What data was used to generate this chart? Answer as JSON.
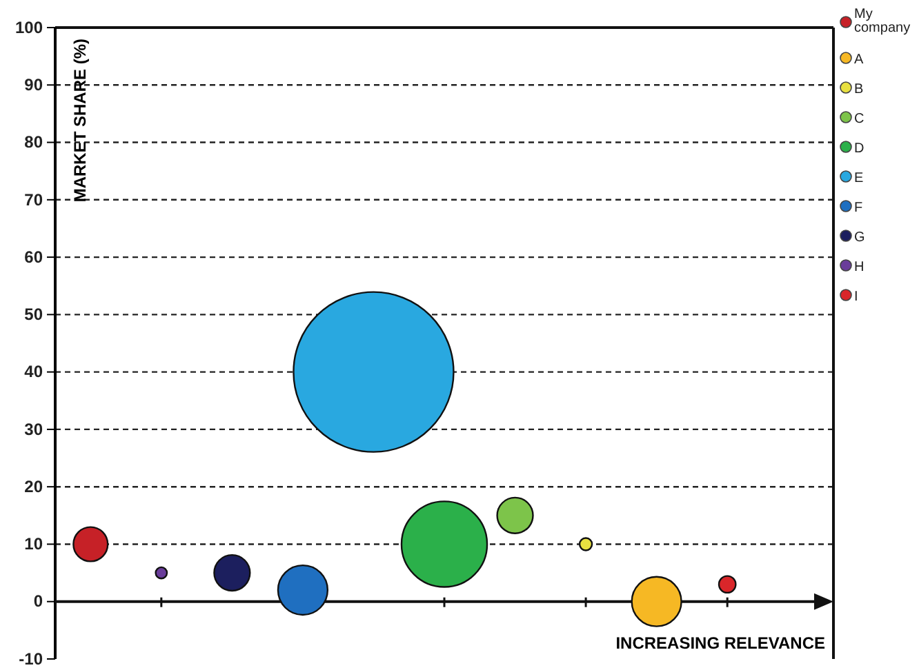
{
  "chart_data": {
    "type": "bubble",
    "xlabel": "INCREASING RELEVANCE",
    "ylabel": "MARKET SHARE (%)",
    "categories": [
      null,
      null,
      null,
      null,
      null,
      null,
      null,
      null,
      null,
      null,
      null
    ],
    "ylim": [
      -10,
      100
    ],
    "yticks": [
      -10,
      0,
      10,
      20,
      30,
      40,
      50,
      60,
      70,
      80,
      90,
      100
    ],
    "tick_labels": "y",
    "grid": "y",
    "legend": "top right",
    "series": [
      {
        "name": "My company",
        "color": "#c62127",
        "values": [
          10,
          null,
          null,
          null,
          null,
          null,
          null,
          null,
          null,
          null,
          null
        ],
        "sizes": [
          0.046,
          null,
          null,
          null,
          null,
          null,
          null,
          null,
          null,
          null,
          null
        ]
      },
      {
        "name": "A",
        "color": "#f6b824",
        "values": [
          null,
          null,
          null,
          null,
          null,
          null,
          null,
          null,
          0,
          null,
          null
        ],
        "sizes": [
          null,
          null,
          null,
          null,
          null,
          null,
          null,
          null,
          0.096,
          null,
          null
        ]
      },
      {
        "name": "B",
        "color": "#e8e040",
        "values": [
          null,
          null,
          null,
          null,
          null,
          null,
          null,
          10,
          null,
          null,
          null
        ],
        "sizes": [
          null,
          null,
          null,
          null,
          null,
          null,
          null,
          0.006,
          null,
          null,
          null
        ]
      },
      {
        "name": "C",
        "color": "#7dc44a",
        "values": [
          null,
          null,
          null,
          null,
          null,
          null,
          15,
          null,
          null,
          null,
          null
        ],
        "sizes": [
          null,
          null,
          null,
          null,
          null,
          null,
          0.05,
          null,
          null,
          null,
          null
        ]
      },
      {
        "name": "D",
        "color": "#2bb04a",
        "values": [
          null,
          null,
          null,
          null,
          null,
          10,
          null,
          null,
          null,
          null,
          null
        ],
        "sizes": [
          null,
          null,
          null,
          null,
          null,
          0.286,
          null,
          null,
          null,
          null,
          null
        ]
      },
      {
        "name": "E",
        "color": "#29a8e0",
        "values": [
          null,
          null,
          null,
          null,
          40,
          null,
          null,
          null,
          null,
          null,
          null
        ],
        "sizes": [
          null,
          null,
          null,
          null,
          1,
          null,
          null,
          null,
          null,
          null,
          null
        ]
      },
      {
        "name": "F",
        "color": "#1f6fc0",
        "values": [
          null,
          null,
          null,
          2,
          null,
          null,
          null,
          null,
          null,
          null,
          null
        ],
        "sizes": [
          null,
          null,
          null,
          0.096,
          null,
          null,
          null,
          null,
          null,
          null,
          null
        ]
      },
      {
        "name": "G",
        "color": "#1c1f5e",
        "values": [
          null,
          null,
          5,
          null,
          null,
          null,
          null,
          null,
          null,
          null,
          null
        ],
        "sizes": [
          null,
          null,
          0.05,
          null,
          null,
          null,
          null,
          null,
          null,
          null,
          null
        ]
      },
      {
        "name": "H",
        "color": "#6a3d9a",
        "values": [
          null,
          5,
          null,
          null,
          null,
          null,
          null,
          null,
          null,
          null,
          null
        ],
        "sizes": [
          null,
          0.005,
          null,
          null,
          null,
          null,
          null,
          null,
          null,
          null,
          null
        ]
      },
      {
        "name": "I",
        "color": "#d9262a",
        "values": [
          null,
          null,
          null,
          null,
          null,
          null,
          null,
          null,
          null,
          3,
          null
        ],
        "sizes": [
          null,
          null,
          null,
          null,
          null,
          null,
          null,
          null,
          null,
          0.011,
          null
        ]
      }
    ]
  }
}
